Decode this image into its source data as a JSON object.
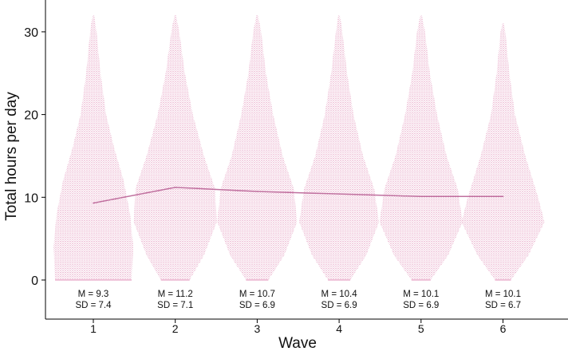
{
  "chart_data": {
    "type": "line",
    "overlay": "beeswarm",
    "xlabel": "Wave",
    "ylabel": "Total hours per day",
    "categories": [
      1,
      2,
      3,
      4,
      5,
      6
    ],
    "ylim": [
      0,
      32
    ],
    "yticks": [
      0,
      10,
      20,
      30
    ],
    "series": [
      {
        "values": [
          9.3,
          11.2,
          10.7,
          10.4,
          10.1,
          10.1
        ]
      }
    ],
    "annotations": [
      {
        "m": "M = 9.3",
        "sd": "SD = 7.4"
      },
      {
        "m": "M = 11.2",
        "sd": "SD = 7.1"
      },
      {
        "m": "M = 10.7",
        "sd": "SD = 6.9"
      },
      {
        "m": "M = 10.4",
        "sd": "SD = 6.9"
      },
      {
        "m": "M = 10.1",
        "sd": "SD = 6.9"
      },
      {
        "m": "M = 10.1",
        "sd": "SD = 6.7"
      }
    ],
    "grid": false,
    "colors": {
      "line": "#c0709f",
      "dots": "#e7a6c6",
      "axis": "#000000"
    }
  }
}
